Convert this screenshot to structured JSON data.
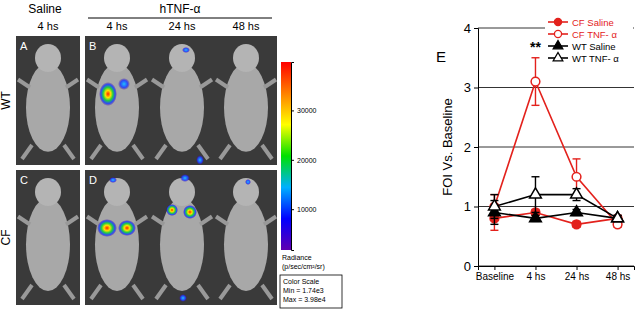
{
  "chart_data": {
    "type": "line",
    "panel_label": "E",
    "y_label": "FOI Vs. Baseline",
    "categories": [
      "Baseline",
      "4 hs",
      "24 hs",
      "48 hs"
    ],
    "series": [
      {
        "name": "CF Saline",
        "color": "#e3211c",
        "marker": "circle",
        "line_style": "solid",
        "values": [
          0.8,
          0.9,
          0.7,
          0.8
        ],
        "errors": [
          0.2,
          0.05,
          0.05,
          0.05
        ]
      },
      {
        "name": "CF TNF- α",
        "color": "#e3211c",
        "marker": "circle-open",
        "line_style": "solid",
        "values": [
          1.0,
          3.1,
          1.5,
          0.7
        ],
        "errors": [
          0.2,
          0.4,
          0.3,
          0.05
        ]
      },
      {
        "name": "WT Saline",
        "color": "#000000",
        "marker": "triangle",
        "line_style": "solid",
        "values": [
          0.9,
          0.8,
          0.9,
          0.8
        ],
        "errors": [
          0.2,
          0.05,
          0.05,
          0.05
        ]
      },
      {
        "name": "WT TNF- α",
        "color": "#000000",
        "marker": "triangle-open",
        "line_style": "solid",
        "values": [
          1.0,
          1.2,
          1.2,
          0.8
        ],
        "errors": [
          0.2,
          0.3,
          0.1,
          0.05
        ]
      }
    ],
    "annotations": [
      {
        "text": "**",
        "x": 1,
        "y": 3.6
      }
    ],
    "ylim": [
      0,
      4
    ],
    "yticks": [
      0,
      1,
      2,
      3,
      4
    ],
    "grid": true,
    "legend": "top-right"
  },
  "image_panel": {
    "column_groups": [
      "Saline",
      "hTNF-α"
    ],
    "columns": [
      "4 hs",
      "4 hs",
      "24 hs",
      "48 hs"
    ],
    "rows": [
      "WT",
      "CF"
    ],
    "panel_letters": [
      "A",
      "B",
      "C",
      "D"
    ],
    "colorbar": {
      "title": [
        "Radiance",
        "(p/sec/cm²/sr)"
      ],
      "range": [
        1740,
        39800
      ],
      "ticks": [
        10000,
        20000,
        30000
      ],
      "box": [
        "Color Scale",
        "Min = 1.74e3",
        "Max = 3.98e4"
      ]
    }
  }
}
